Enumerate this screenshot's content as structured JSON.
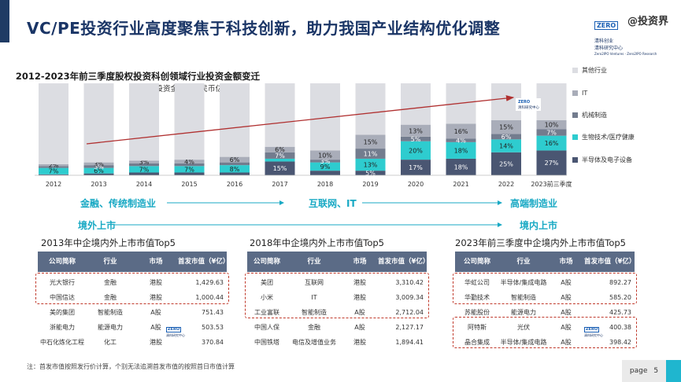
{
  "title": "VC/PE投资行业高度聚焦于科技创新，助力我国产业结构优化调整",
  "logo": {
    "badge": "ZERO",
    "name_cn": "清科创业",
    "research_cn": "清科研究中心",
    "en": "Zero2IPO Ventures · Zero2IPO Research"
  },
  "watermark": "@投资界",
  "chart_data": {
    "type": "bar",
    "stacked": true,
    "percent_stacked": true,
    "title": "2012-2023年前三季度股权投资科创领域行业投资金额变迁",
    "subtitle": "(投资金额，人民币亿元)",
    "categories": [
      "2012",
      "2013",
      "2014",
      "2015",
      "2016",
      "2017",
      "2018",
      "2019",
      "2020",
      "2021",
      "2022",
      "2023前三季度"
    ],
    "series": [
      {
        "name": "半导体及电子设备",
        "color": "#4a5672",
        "values": [
          1,
          2,
          3,
          3,
          3,
          15,
          5,
          5,
          17,
          18,
          25,
          27
        ],
        "labels": [
          "",
          "",
          "",
          "",
          "",
          "15%",
          "",
          "5%",
          "17%",
          "18%",
          "25%",
          "27%"
        ]
      },
      {
        "name": "生物技术/医疗健康",
        "color": "#2ecccf",
        "values": [
          7,
          6,
          7,
          7,
          8,
          3,
          9,
          13,
          20,
          18,
          14,
          16
        ],
        "labels": [
          "7%",
          "6%",
          "7%",
          "7%",
          "8%",
          "",
          "9%",
          "13%",
          "20%",
          "18%",
          "14%",
          "16%"
        ]
      },
      {
        "name": "机械制造",
        "color": "#737c8e",
        "values": [
          2,
          3,
          3,
          3,
          3,
          7,
          3,
          11,
          5,
          4,
          6,
          7
        ],
        "labels": [
          "",
          "3%",
          "",
          "",
          "",
          "7%",
          "3%",
          "11%",
          "5%",
          "4%",
          "6%",
          "7%"
        ]
      },
      {
        "name": "IT",
        "color": "#a9adb9",
        "values": [
          2,
          3,
          3,
          4,
          6,
          6,
          10,
          15,
          13,
          16,
          15,
          10
        ],
        "labels": [
          "2%",
          "3%",
          "3%",
          "4%",
          "6%",
          "6%",
          "10%",
          "15%",
          "13%",
          "16%",
          "15%",
          "10%"
        ]
      },
      {
        "name": "其他行业",
        "color": "#dcdde2",
        "values": [
          88,
          86,
          84,
          83,
          80,
          69,
          73,
          56,
          45,
          44,
          40,
          40
        ],
        "labels": [
          "",
          "",
          "",
          "",
          "",
          "",
          "",
          "",
          "",
          "",
          "",
          ""
        ]
      }
    ],
    "legend_order": [
      "其他行业",
      "IT",
      "机械制造",
      "生物技术/医疗健康",
      "半导体及电子设备"
    ],
    "legend_position": "right",
    "trend_arrow": true
  },
  "stages": [
    "金融、传统制造业",
    "互联网、IT",
    "高端制造业"
  ],
  "stage_secondary": [
    "境外上市",
    "境内上市"
  ],
  "tables": [
    {
      "title": "2013年中企境内外上市市值Top5",
      "headers": [
        "公司简称",
        "行业",
        "市场",
        "首发市值（¥亿）"
      ],
      "rows": [
        [
          "光大银行",
          "金融",
          "港股",
          "1,429.63"
        ],
        [
          "中国信达",
          "金融",
          "港股",
          "1,000.44"
        ],
        [
          "美的集团",
          "智能制造",
          "A股",
          "751.43"
        ],
        [
          "浙能电力",
          "能源电力",
          "A股",
          "503.53"
        ],
        [
          "中石化炼化工程",
          "化工",
          "港股",
          "370.84"
        ]
      ]
    },
    {
      "title": "2018年中企境内外上市市值Top5",
      "headers": [
        "公司简称",
        "行业",
        "市场",
        "首发市值（¥亿）"
      ],
      "rows": [
        [
          "美团",
          "互联网",
          "港股",
          "3,310.42"
        ],
        [
          "小米",
          "IT",
          "港股",
          "3,009.34"
        ],
        [
          "工业富联",
          "智能制造",
          "A股",
          "2,712.04"
        ],
        [
          "中国人保",
          "金融",
          "A股",
          "2,127.17"
        ],
        [
          "中国铁塔",
          "电信及增值业务",
          "港股",
          "1,894.41"
        ]
      ]
    },
    {
      "title": "2023年前三季度中企境内外上市市值Top5",
      "headers": [
        "公司简称",
        "行业",
        "市场",
        "首发市值（¥亿）"
      ],
      "rows": [
        [
          "华虹公司",
          "半导体/集成电路",
          "A股",
          "892.27"
        ],
        [
          "华勤技术",
          "智能制造",
          "A股",
          "585.20"
        ],
        [
          "苏能股份",
          "能源电力",
          "A股",
          "425.73"
        ],
        [
          "阿特斯",
          "光伏",
          "A股",
          "400.38"
        ],
        [
          "晶合集成",
          "半导体/集成电路",
          "A股",
          "398.42"
        ]
      ]
    }
  ],
  "footnote": "注：首发市值按照发行价计算，个别无法追溯首发市值的按照首日市值计算",
  "page": {
    "label": "page",
    "number": "5"
  }
}
